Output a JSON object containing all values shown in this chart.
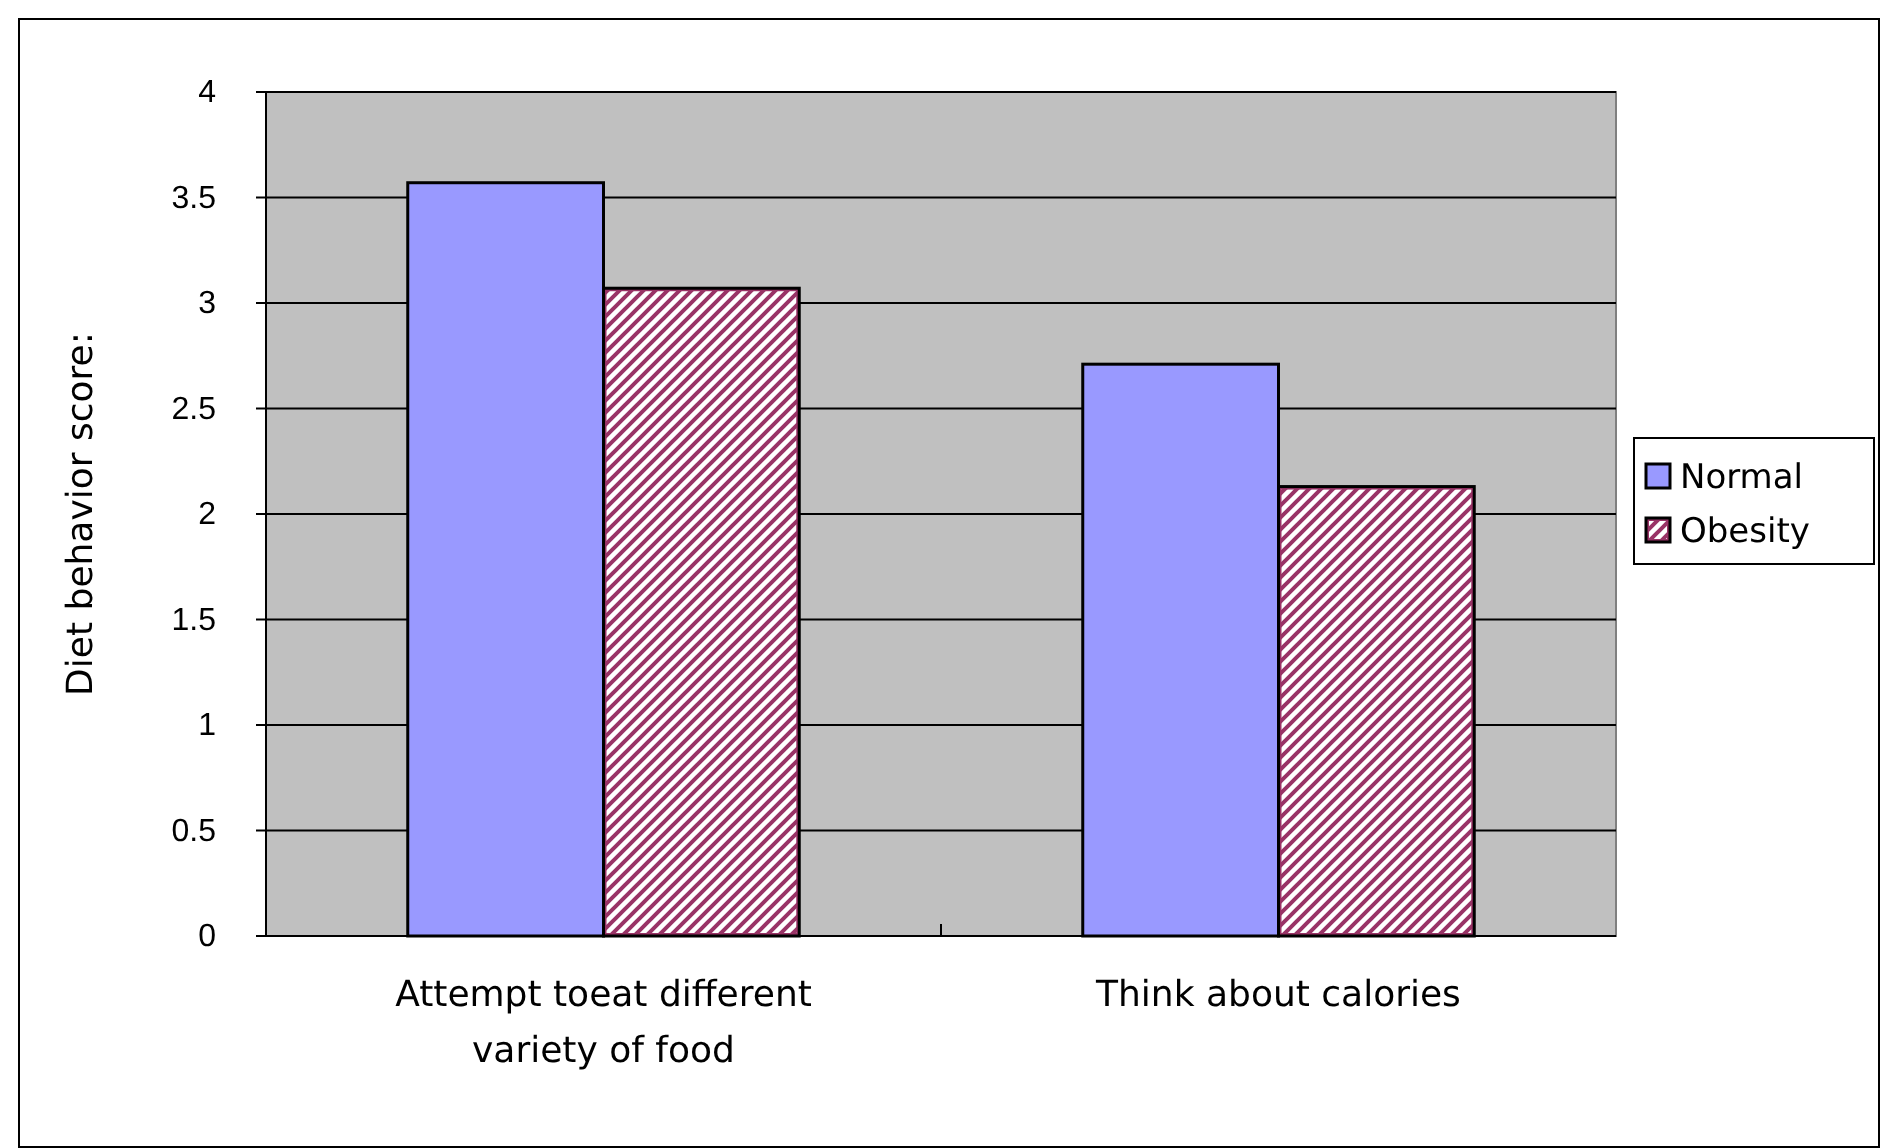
{
  "chart_data": {
    "type": "bar",
    "ylabel": "Diet behavior score:",
    "categories": [
      "Attempt toeat different variety of food",
      "Think about calories"
    ],
    "series": [
      {
        "name": "Normal",
        "color": "#9999ff",
        "values": [
          3.57,
          2.71
        ]
      },
      {
        "name": "Obesity",
        "color": "#993366",
        "values": [
          3.07,
          2.13
        ]
      }
    ],
    "ylim": [
      0,
      4
    ],
    "yticks": [
      0,
      0.5,
      1,
      1.5,
      2,
      2.5,
      3,
      3.5,
      4
    ],
    "grid": "y",
    "legend": "right"
  }
}
